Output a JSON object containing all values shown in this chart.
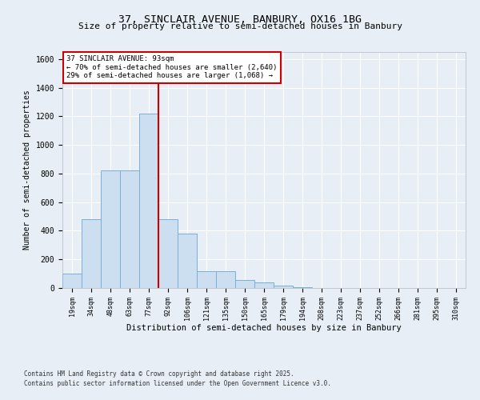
{
  "title1": "37, SINCLAIR AVENUE, BANBURY, OX16 1BG",
  "title2": "Size of property relative to semi-detached houses in Banbury",
  "xlabel": "Distribution of semi-detached houses by size in Banbury",
  "ylabel": "Number of semi-detached properties",
  "categories": [
    "19sqm",
    "34sqm",
    "48sqm",
    "63sqm",
    "77sqm",
    "92sqm",
    "106sqm",
    "121sqm",
    "135sqm",
    "150sqm",
    "165sqm",
    "179sqm",
    "194sqm",
    "208sqm",
    "223sqm",
    "237sqm",
    "252sqm",
    "266sqm",
    "281sqm",
    "295sqm",
    "310sqm"
  ],
  "values": [
    100,
    480,
    820,
    820,
    1220,
    480,
    380,
    120,
    120,
    55,
    40,
    15,
    8,
    2,
    0,
    0,
    0,
    0,
    0,
    0,
    0
  ],
  "bar_color": "#ccdff0",
  "bar_edge_color": "#7bafd4",
  "vline_color": "#cc0000",
  "annotation_title": "37 SINCLAIR AVENUE: 93sqm",
  "annotation_line1": "← 70% of semi-detached houses are smaller (2,640)",
  "annotation_line2": "29% of semi-detached houses are larger (1,068) →",
  "ylim": [
    0,
    1650
  ],
  "yticks": [
    0,
    200,
    400,
    600,
    800,
    1000,
    1200,
    1400,
    1600
  ],
  "footnote1": "Contains HM Land Registry data © Crown copyright and database right 2025.",
  "footnote2": "Contains public sector information licensed under the Open Government Licence v3.0.",
  "bg_color": "#e8eef5",
  "plot_bg_color": "#e8eef5"
}
